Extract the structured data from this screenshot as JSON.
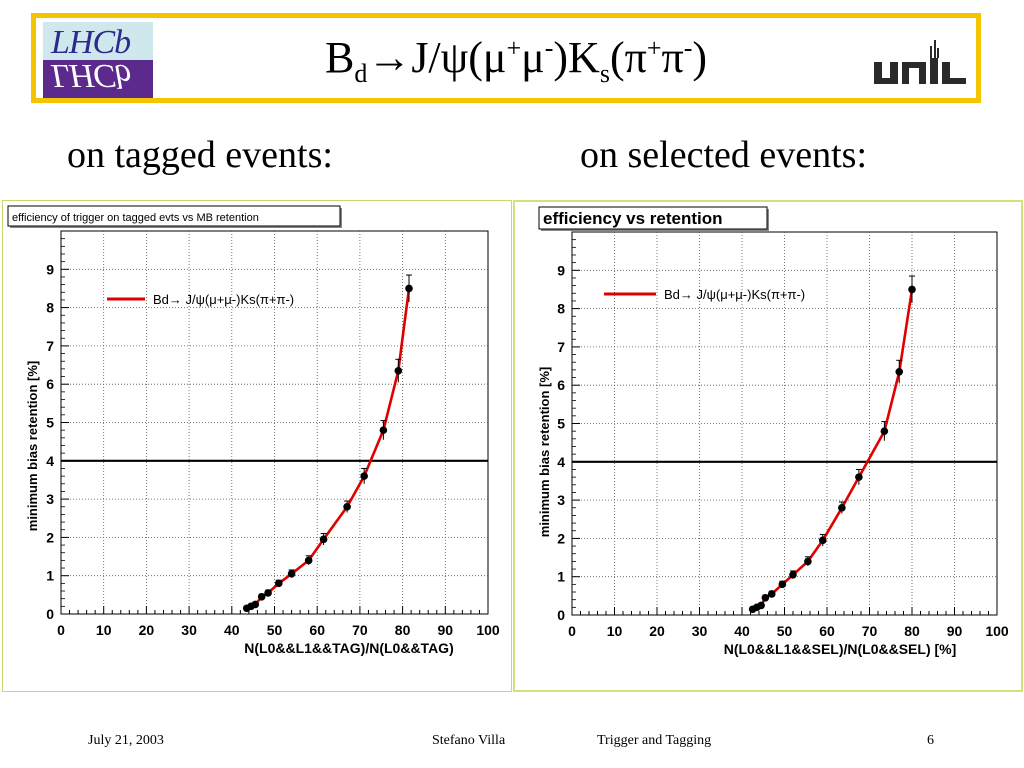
{
  "slide": {
    "title": {
      "p1": "B",
      "p1_sub": "d",
      "p2": "→J/ψ(μ",
      "p2_sup": "+",
      "p3": "μ",
      "p3_sup": "-",
      "p4": ")K",
      "p4_sub": "s",
      "p5": "(π",
      "p5_sup": "+",
      "p6": "π",
      "p6_sup": "-",
      "p7": ")"
    },
    "logo_left_text": "LHCb",
    "logo_right_text": "unil",
    "subheading_left": "on tagged events:",
    "subheading_right": "on selected events:",
    "footer": {
      "date": "July 21, 2003",
      "author": "Stefano Villa",
      "topic": "Trigger and Tagging",
      "page": "6"
    }
  },
  "colors": {
    "border": "#f5c400",
    "curve": "#e00000",
    "points": "#000000",
    "threshold": "#000000"
  },
  "chart_data": [
    {
      "type": "scatter",
      "title": "efficiency of trigger on tagged evts vs MB retention",
      "xlabel": "N(L0&&L1&&TAG)/N(L0&&TAG)",
      "ylabel": "minimum bias retention [%]",
      "xlim": [
        0,
        100
      ],
      "ylim": [
        0,
        10
      ],
      "xticks": [
        "0",
        "10",
        "20",
        "30",
        "40",
        "50",
        "60",
        "70",
        "80",
        "90",
        "100"
      ],
      "yticks": [
        "0",
        "1",
        "2",
        "3",
        "4",
        "5",
        "6",
        "7",
        "8",
        "9"
      ],
      "grid": true,
      "legend": "Bd→ J/ψ(μ+μ-)Ks(π+π-)",
      "legend_position": "top-left",
      "threshold_y": 4,
      "series": [
        {
          "x": [
            43.5,
            44.5,
            45.5,
            47,
            48.5,
            51,
            54,
            58,
            61.5,
            67,
            71,
            75.5,
            79,
            81.5
          ],
          "y": [
            0.15,
            0.2,
            0.25,
            0.45,
            0.55,
            0.8,
            1.05,
            1.4,
            1.95,
            2.8,
            3.6,
            4.8,
            6.35,
            8.5
          ],
          "yerr": [
            0.05,
            0.05,
            0.05,
            0.07,
            0.07,
            0.08,
            0.1,
            0.12,
            0.15,
            0.15,
            0.2,
            0.25,
            0.3,
            0.35
          ]
        }
      ]
    },
    {
      "type": "scatter",
      "title": "efficiency vs retention",
      "xlabel": "N(L0&&L1&&SEL)/N(L0&&SEL) [%]",
      "ylabel": "minimum bias retention [%]",
      "xlim": [
        0,
        100
      ],
      "ylim": [
        0,
        10
      ],
      "xticks": [
        "0",
        "10",
        "20",
        "30",
        "40",
        "50",
        "60",
        "70",
        "80",
        "90",
        "100"
      ],
      "yticks": [
        "0",
        "1",
        "2",
        "3",
        "4",
        "5",
        "6",
        "7",
        "8",
        "9"
      ],
      "grid": true,
      "legend": "Bd→ J/ψ(μ+μ-)Ks(π+π-)",
      "legend_position": "top-left",
      "threshold_y": 4,
      "series": [
        {
          "x": [
            42.5,
            43.5,
            44.5,
            45.5,
            47,
            49.5,
            52,
            55.5,
            59,
            63.5,
            67.5,
            73.5,
            77,
            80
          ],
          "y": [
            0.15,
            0.2,
            0.25,
            0.45,
            0.55,
            0.8,
            1.05,
            1.4,
            1.95,
            2.8,
            3.6,
            4.8,
            6.35,
            8.5
          ],
          "yerr": [
            0.05,
            0.05,
            0.05,
            0.07,
            0.07,
            0.08,
            0.1,
            0.12,
            0.15,
            0.15,
            0.2,
            0.25,
            0.3,
            0.35
          ]
        }
      ]
    }
  ]
}
